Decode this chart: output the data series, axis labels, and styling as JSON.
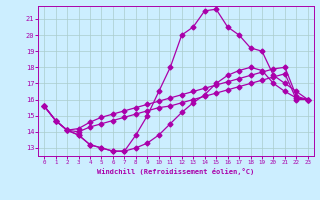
{
  "background_color": "#cceeff",
  "grid_color": "#aacccc",
  "line_color": "#aa00aa",
  "xlabel": "Windchill (Refroidissement éolien,°C)",
  "xlim": [
    -0.5,
    23.5
  ],
  "ylim": [
    12.5,
    21.8
  ],
  "xticks": [
    0,
    1,
    2,
    3,
    4,
    5,
    6,
    7,
    8,
    9,
    10,
    11,
    12,
    13,
    14,
    15,
    16,
    17,
    18,
    19,
    20,
    21,
    22,
    23
  ],
  "yticks": [
    13,
    14,
    15,
    16,
    17,
    18,
    19,
    20,
    21
  ],
  "line1_x": [
    0,
    1,
    2,
    3,
    4,
    5,
    6,
    7,
    8,
    9,
    10,
    11,
    12,
    13,
    14,
    15,
    16,
    17,
    18,
    19,
    20,
    21,
    22,
    23
  ],
  "line1_y": [
    15.6,
    14.7,
    14.1,
    13.8,
    13.2,
    13.0,
    12.8,
    12.8,
    13.0,
    13.3,
    13.8,
    14.5,
    15.2,
    15.8,
    16.3,
    17.0,
    17.5,
    17.8,
    18.0,
    17.8,
    17.0,
    16.5,
    16.1,
    16.0
  ],
  "line2_x": [
    0,
    1,
    2,
    3,
    4,
    5,
    6,
    7,
    8,
    9,
    10,
    11,
    12,
    13,
    14,
    15,
    16,
    17,
    18,
    19,
    20,
    21,
    22,
    23
  ],
  "line2_y": [
    15.6,
    14.7,
    14.1,
    13.8,
    13.2,
    13.0,
    12.8,
    12.8,
    13.8,
    15.0,
    16.5,
    18.0,
    20.0,
    20.5,
    21.5,
    21.6,
    20.5,
    20.0,
    19.2,
    19.0,
    17.5,
    17.0,
    16.5,
    16.0
  ],
  "line3_x": [
    0,
    1,
    2,
    3,
    4,
    5,
    6,
    7,
    8,
    9,
    10,
    11,
    12,
    13,
    14,
    15,
    16,
    17,
    18,
    19,
    20,
    21,
    22,
    23
  ],
  "line3_y": [
    15.6,
    14.7,
    14.1,
    14.2,
    14.6,
    14.9,
    15.1,
    15.3,
    15.5,
    15.7,
    15.9,
    16.1,
    16.3,
    16.5,
    16.7,
    16.9,
    17.1,
    17.3,
    17.5,
    17.7,
    17.9,
    18.0,
    16.2,
    16.0
  ],
  "line4_x": [
    0,
    1,
    2,
    3,
    4,
    5,
    6,
    7,
    8,
    9,
    10,
    11,
    12,
    13,
    14,
    15,
    16,
    17,
    18,
    19,
    20,
    21,
    22,
    23
  ],
  "line4_y": [
    15.6,
    14.7,
    14.1,
    14.0,
    14.3,
    14.5,
    14.7,
    14.9,
    15.1,
    15.3,
    15.5,
    15.6,
    15.8,
    16.0,
    16.2,
    16.4,
    16.6,
    16.8,
    17.0,
    17.2,
    17.4,
    17.6,
    16.0,
    16.0
  ]
}
